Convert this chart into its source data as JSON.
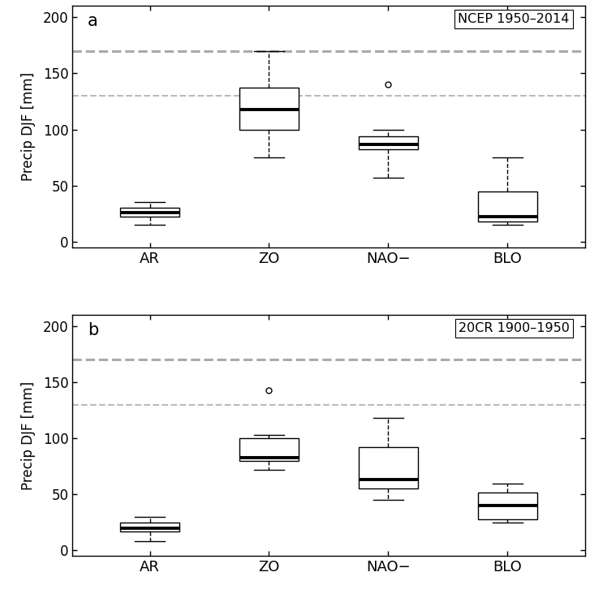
{
  "panel_a": {
    "label": "a",
    "title": "NCEP 1950–2014",
    "categories": [
      "AR",
      "ZO",
      "NAO−",
      "BLO"
    ],
    "boxes": [
      {
        "whislo": 15,
        "q1": 22,
        "med": 26,
        "q3": 30,
        "whishi": 35,
        "fliers": []
      },
      {
        "whislo": 75,
        "q1": 100,
        "med": 118,
        "q3": 137,
        "whishi": 170,
        "fliers": []
      },
      {
        "whislo": 57,
        "q1": 82,
        "med": 87,
        "q3": 94,
        "whishi": 100,
        "fliers": [
          140
        ]
      },
      {
        "whislo": 15,
        "q1": 18,
        "med": 22,
        "q3": 45,
        "whishi": 75,
        "fliers": []
      }
    ],
    "hline1": 170,
    "hline2": 130,
    "ylim": [
      -5,
      210
    ],
    "yticks": [
      0,
      50,
      100,
      150,
      200
    ]
  },
  "panel_b": {
    "label": "b",
    "title": "20CR 1900–1950",
    "categories": [
      "AR",
      "ZO",
      "NAO−",
      "BLO"
    ],
    "boxes": [
      {
        "whislo": 8,
        "q1": 17,
        "med": 20,
        "q3": 25,
        "whishi": 30,
        "fliers": []
      },
      {
        "whislo": 72,
        "q1": 80,
        "med": 83,
        "q3": 100,
        "whishi": 103,
        "fliers": [
          143
        ]
      },
      {
        "whislo": 45,
        "q1": 55,
        "med": 63,
        "q3": 92,
        "whishi": 118,
        "fliers": []
      },
      {
        "whislo": 25,
        "q1": 28,
        "med": 40,
        "q3": 52,
        "whishi": 60,
        "fliers": []
      }
    ],
    "hline1": 170,
    "hline2": 130,
    "ylim": [
      -5,
      210
    ],
    "yticks": [
      0,
      50,
      100,
      150,
      200
    ]
  },
  "ylabel": "Precip DJF [mm]",
  "box_color": "white",
  "median_color": "black",
  "whisker_color": "black",
  "cap_color": "black",
  "flier_color": "black",
  "box_edge_color": "black",
  "hline1_color": "#aaaaaa",
  "hline1_lw": 2.2,
  "hline2_color": "#bbbbbb",
  "hline2_lw": 1.5,
  "background_color": "white"
}
